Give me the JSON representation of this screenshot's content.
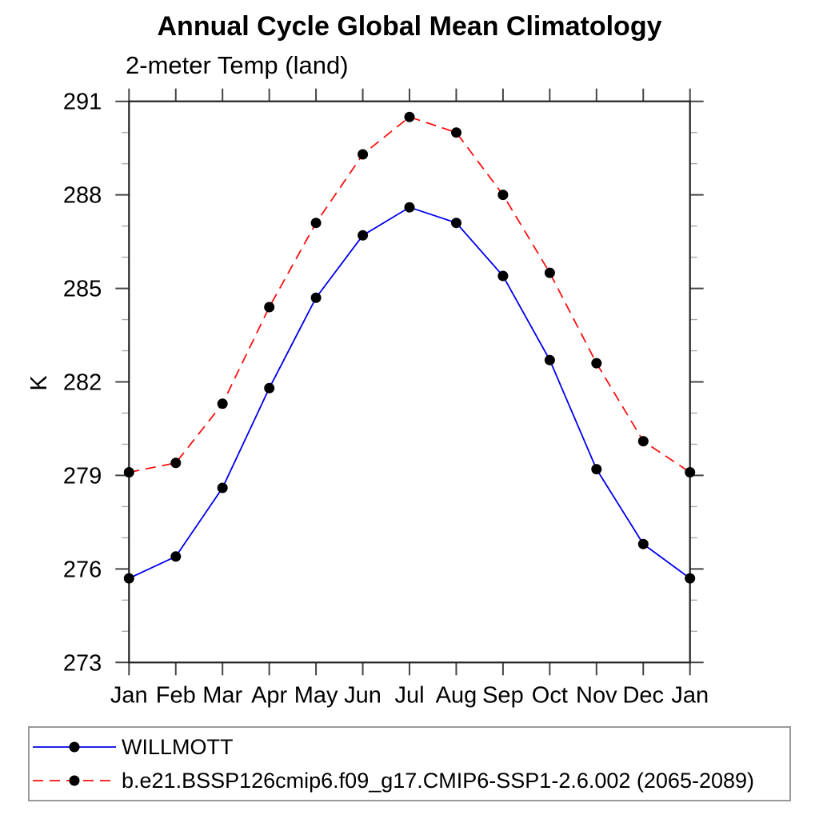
{
  "chart_data": {
    "type": "line",
    "title": "Annual Cycle Global Mean Climatology",
    "subtitle": "2-meter Temp (land)",
    "ylabel": "K",
    "ylim": [
      273,
      291
    ],
    "yticks_major": [
      273,
      276,
      279,
      282,
      285,
      288,
      291
    ],
    "ytick_minor_step": 1,
    "x_categories": [
      "Jan",
      "Feb",
      "Mar",
      "Apr",
      "May",
      "Jun",
      "Jul",
      "Aug",
      "Sep",
      "Oct",
      "Nov",
      "Dec",
      "Jan"
    ],
    "grid": false,
    "legend_position": "bottom-outside",
    "series": [
      {
        "name": "WILLMOTT",
        "color": "#0000ee",
        "line_style": "solid",
        "marker": "filled-circle",
        "marker_color": "#000000",
        "values": [
          275.7,
          276.4,
          278.6,
          281.8,
          284.7,
          286.7,
          287.6,
          287.1,
          285.4,
          282.7,
          279.2,
          276.8,
          275.7
        ]
      },
      {
        "name": "b.e21.BSSP126cmip6.f09_g17.CMIP6-SSP1-2.6.002 (2065-2089)",
        "color": "#fb0f0f",
        "line_style": "dashed",
        "marker": "filled-circle",
        "marker_color": "#000000",
        "values": [
          279.1,
          279.4,
          281.3,
          284.4,
          287.1,
          289.3,
          290.5,
          290.0,
          288.0,
          285.5,
          282.6,
          280.1,
          279.1
        ]
      }
    ]
  }
}
